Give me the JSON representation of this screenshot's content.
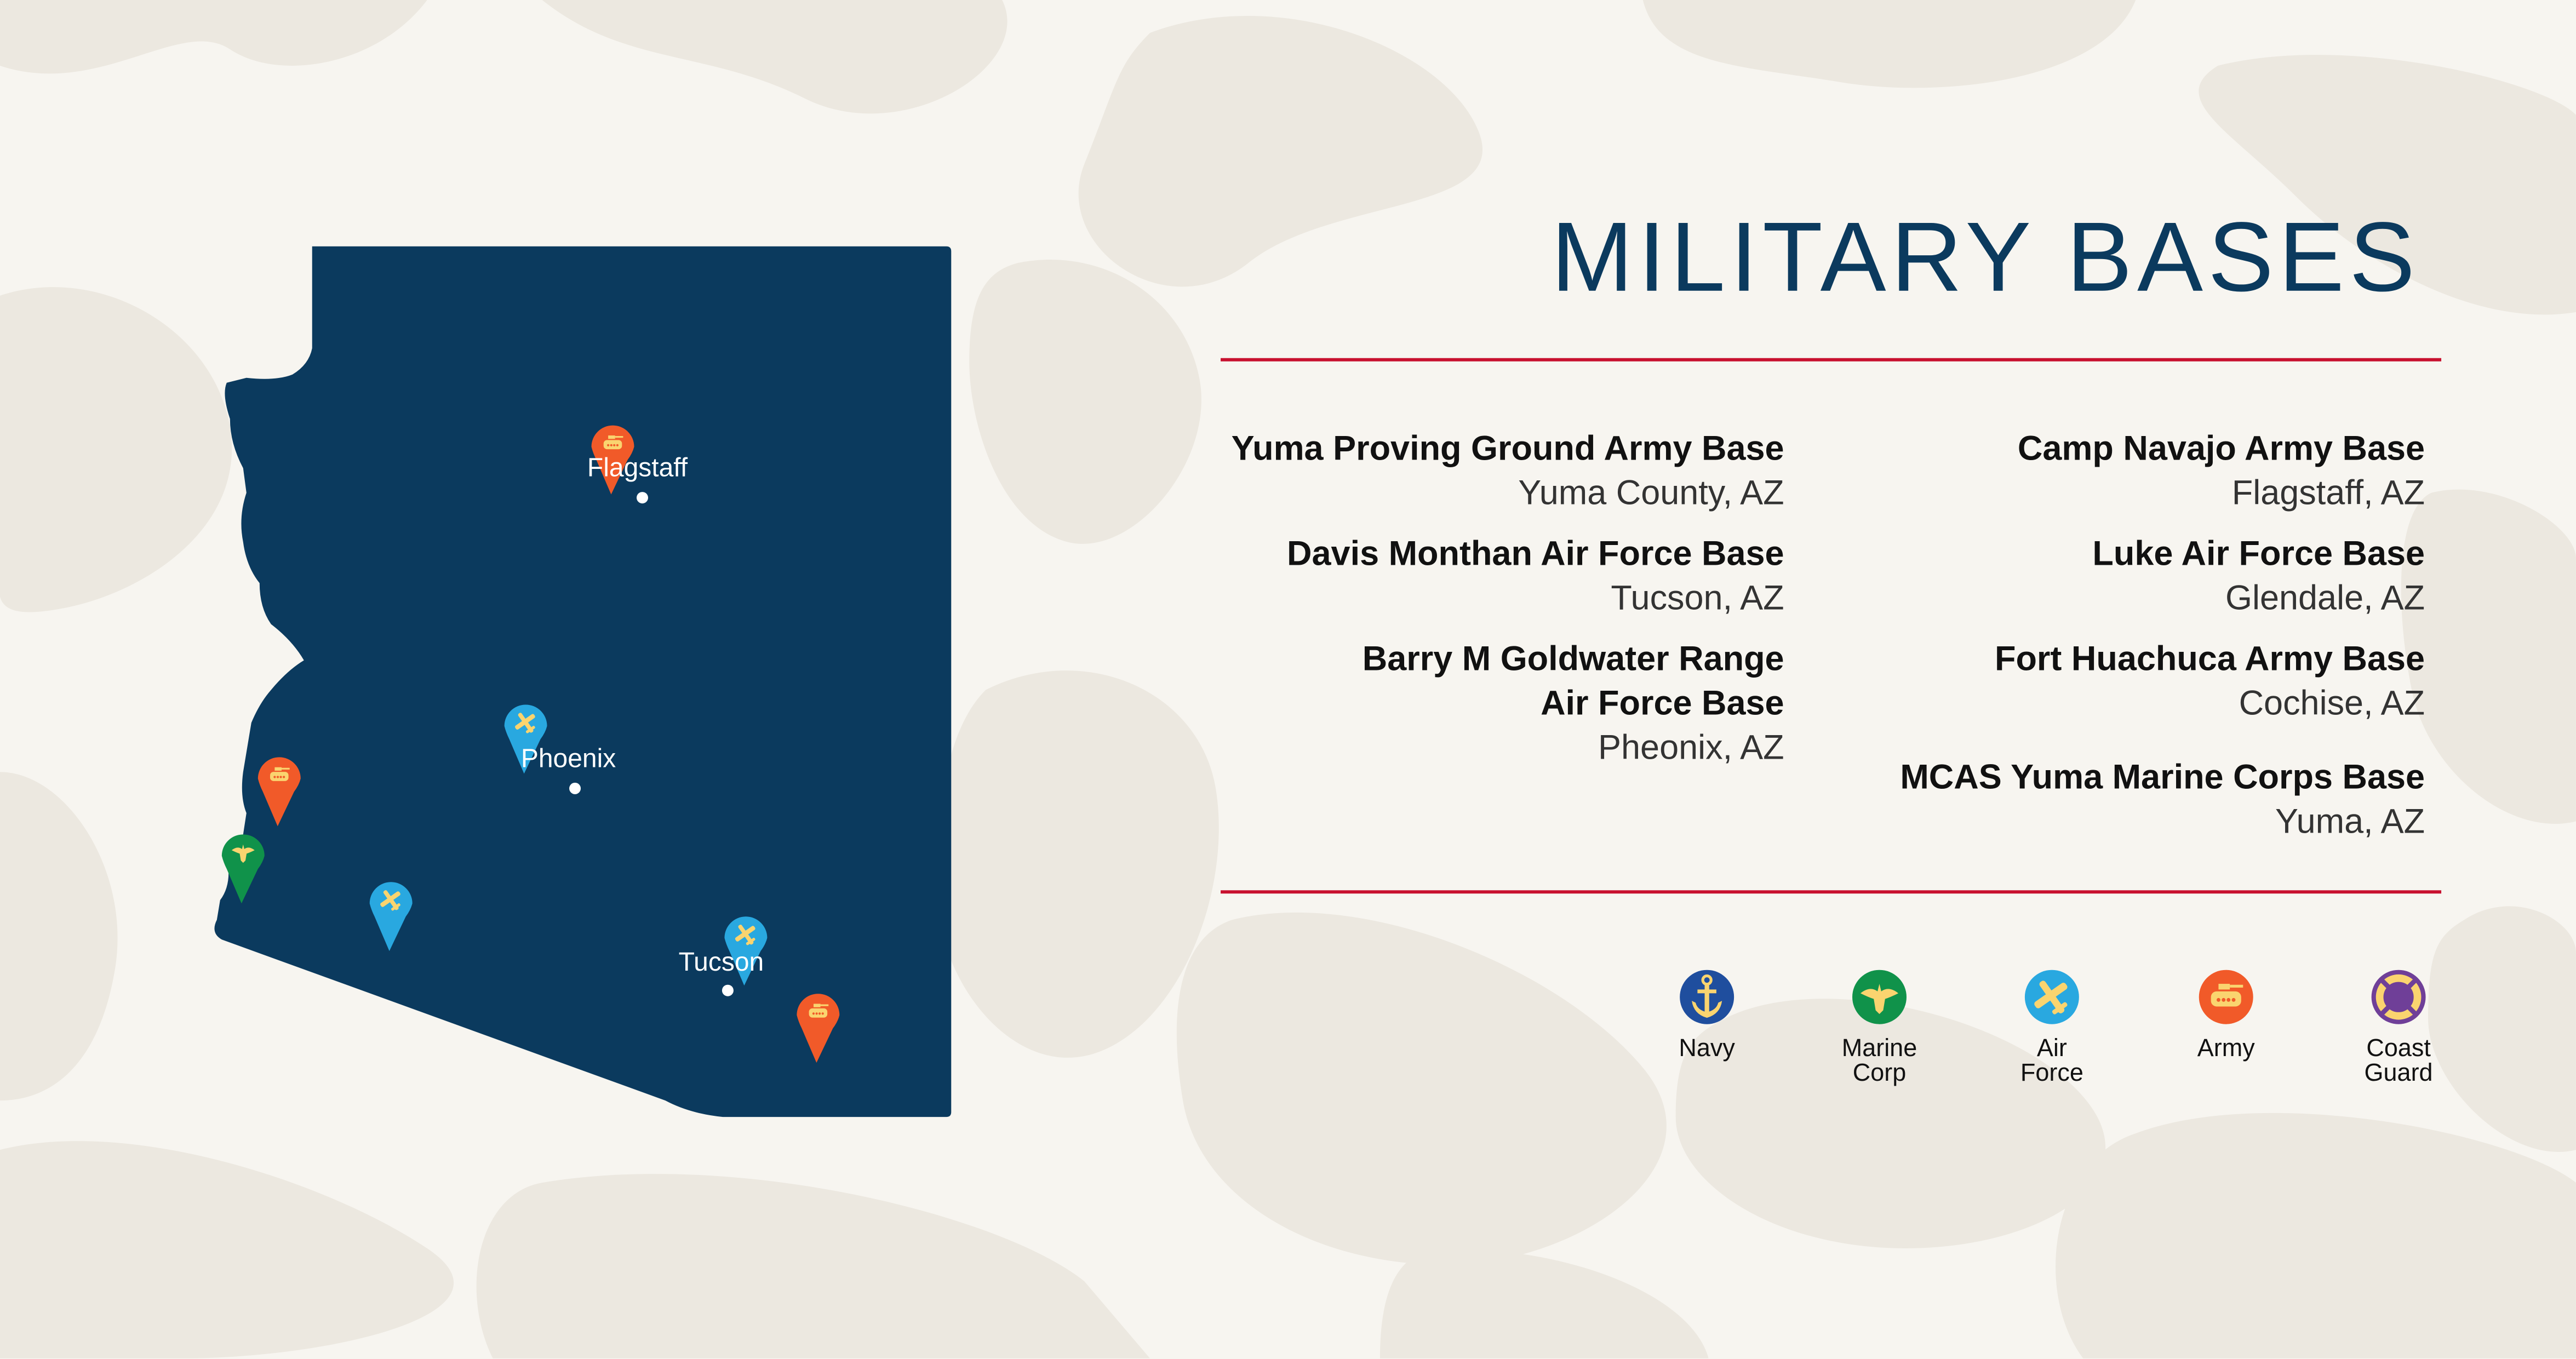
{
  "title": "MILITARY BASES",
  "colors": {
    "map": "#0b3a5e",
    "rule": "#c8102e",
    "navy": "#1f4e9e",
    "marine": "#10924a",
    "airforce": "#29a8e0",
    "army": "#f15a29",
    "coastguard": "#6f3f98",
    "icon": "#fad46f"
  },
  "bases_left": [
    {
      "name": "Yuma Proving Ground Army Base",
      "location": "Yuma County, AZ"
    },
    {
      "name": "Davis Monthan Air Force Base",
      "location": "Tucson, AZ"
    },
    {
      "name": "Barry M Goldwater Range",
      "name2": "Air Force Base",
      "location": "Pheonix, AZ"
    }
  ],
  "bases_right": [
    {
      "name": "Camp Navajo Army Base",
      "location": "Flagstaff, AZ"
    },
    {
      "name": "Luke Air Force Base",
      "location": "Glendale, AZ"
    },
    {
      "name": "Fort Huachuca Army Base",
      "location": "Cochise, AZ"
    },
    {
      "name": "MCAS Yuma Marine Corps Base",
      "location": "Yuma, AZ"
    }
  ],
  "legend": [
    {
      "label1": "Navy",
      "label2": "",
      "icon": "anchor-icon"
    },
    {
      "label1": "Marine",
      "label2": "Corp",
      "icon": "eagle-icon"
    },
    {
      "label1": "Air",
      "label2": "Force",
      "icon": "airplane-icon"
    },
    {
      "label1": "Army",
      "label2": "",
      "icon": "tank-icon"
    },
    {
      "label1": "Coast",
      "label2": "Guard",
      "icon": "lifebuoy-icon"
    }
  ],
  "cities": [
    "Flagstaff",
    "Phoenix",
    "Tucson"
  ],
  "pins": [
    {
      "branch": "army",
      "near": "Flagstaff"
    },
    {
      "branch": "airforce",
      "near": "Phoenix"
    },
    {
      "branch": "army",
      "near": "Yuma County"
    },
    {
      "branch": "marine",
      "near": "Yuma"
    },
    {
      "branch": "airforce",
      "near": "Gila Bend"
    },
    {
      "branch": "airforce",
      "near": "Tucson"
    },
    {
      "branch": "army",
      "near": "Cochise"
    }
  ]
}
